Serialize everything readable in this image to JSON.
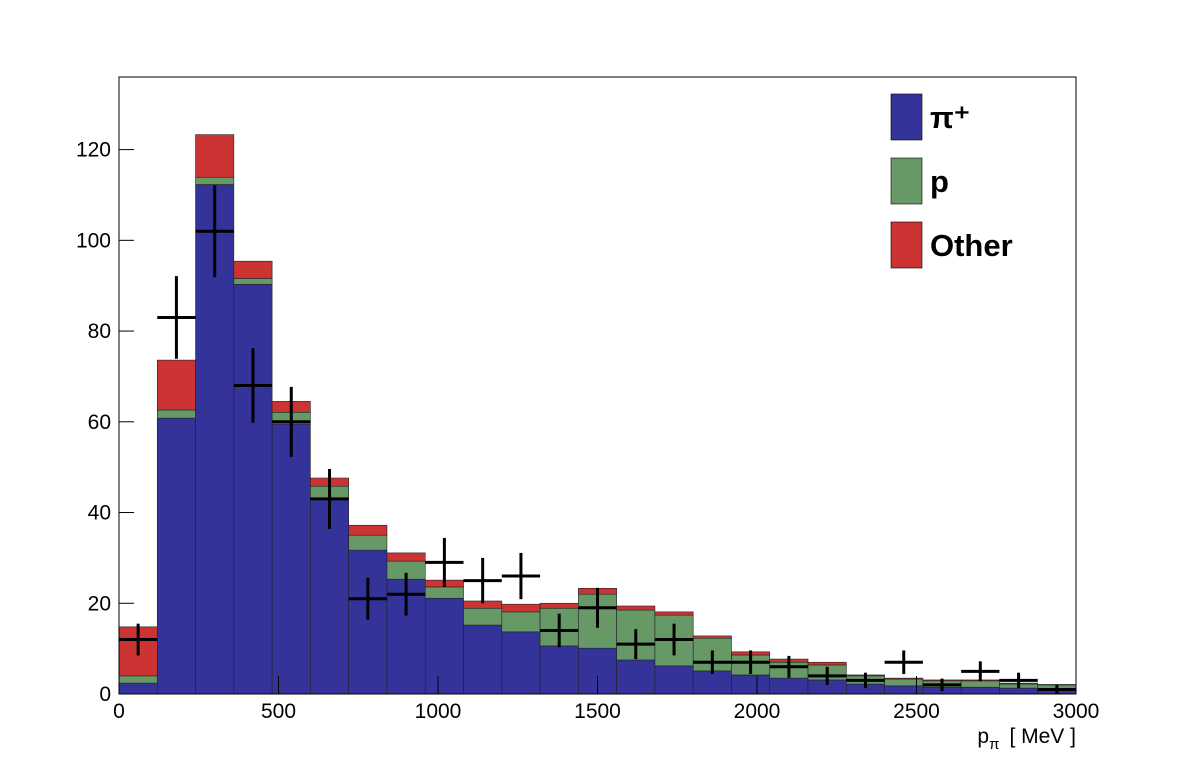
{
  "chart_data": {
    "type": "stacked-histogram",
    "x_label": {
      "main": "p",
      "sub": "π",
      "unit": "[ MeV ]"
    },
    "bins": [
      0,
      120,
      240,
      360,
      480,
      600,
      720,
      840,
      960,
      1080,
      1200,
      1320,
      1440,
      1560,
      1680,
      1800,
      1920,
      2040,
      2160,
      2280,
      2400,
      2520,
      2640,
      2760,
      2880,
      3000
    ],
    "series": [
      {
        "name": "π⁺",
        "color": "#333399",
        "values": [
          2.4,
          60.8,
          112.3,
          90.3,
          59.5,
          43.2,
          31.7,
          25.3,
          21.1,
          15.2,
          13.7,
          10.6,
          10.1,
          7.5,
          6.2,
          5.1,
          4.2,
          3.5,
          3.1,
          2.2,
          1.8,
          1.5,
          1.5,
          1.3,
          1.1
        ]
      },
      {
        "name": "p",
        "color": "#669966",
        "values": [
          1.6,
          1.8,
          1.6,
          1.3,
          2.6,
          2.6,
          3.3,
          4.0,
          2.5,
          3.7,
          4.4,
          8.3,
          11.9,
          11.0,
          11.2,
          7.2,
          4.4,
          3.5,
          3.3,
          1.8,
          1.5,
          1.4,
          1.4,
          0.9,
          0.9
        ]
      },
      {
        "name": "Other",
        "color": "#cc3333",
        "values": [
          10.8,
          11.0,
          9.4,
          3.8,
          2.4,
          1.8,
          2.2,
          1.8,
          1.5,
          1.6,
          1.7,
          1.1,
          1.3,
          0.9,
          0.7,
          0.5,
          0.7,
          0.7,
          0.6,
          0.2,
          0.2,
          0.2,
          0.2,
          0.2,
          0.1
        ]
      }
    ],
    "data_points": {
      "color": "#000000",
      "values": [
        12,
        83,
        102,
        68,
        60,
        43,
        21,
        22,
        29,
        25,
        26,
        14,
        19,
        11,
        12,
        7,
        7,
        6,
        4,
        3,
        7,
        2,
        5,
        3,
        1
      ],
      "errors": [
        3.5,
        9.1,
        10.1,
        8.2,
        7.7,
        6.6,
        4.6,
        4.7,
        5.4,
        5.0,
        5.1,
        3.7,
        4.4,
        3.3,
        3.5,
        2.6,
        2.6,
        2.4,
        2.0,
        1.7,
        2.6,
        1.4,
        2.2,
        1.7,
        1.0
      ]
    },
    "xlim": [
      0,
      3000
    ],
    "xticks": [
      0,
      500,
      1000,
      1500,
      2000,
      2500,
      3000
    ],
    "ylim": [
      0,
      136
    ],
    "yticks": [
      0,
      20,
      40,
      60,
      80,
      100,
      120
    ],
    "legend": "top-right"
  }
}
